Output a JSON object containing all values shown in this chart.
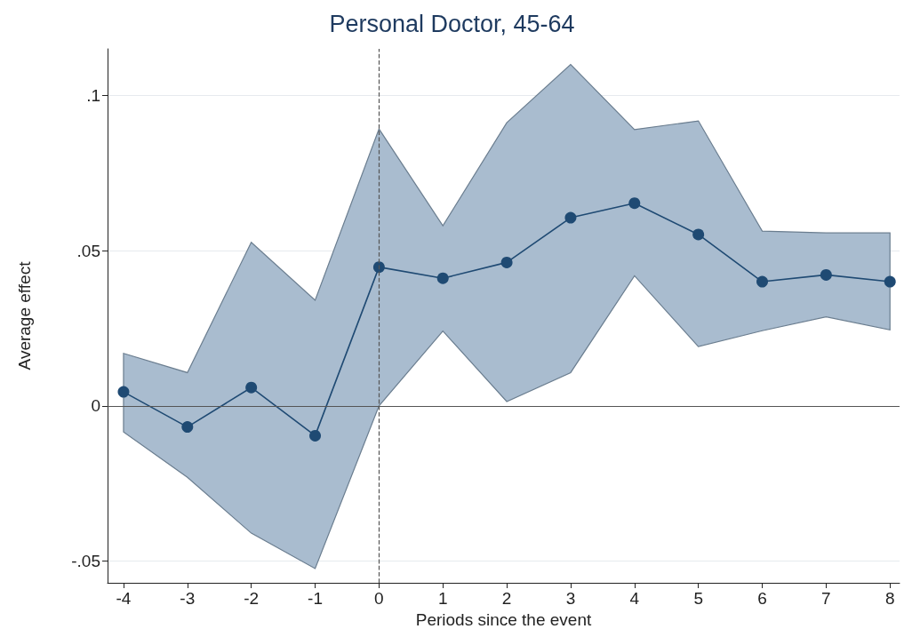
{
  "chart_data": {
    "type": "line",
    "title": "Personal Doctor, 45-64",
    "xlabel": "Periods since the event",
    "ylabel": "Average effect",
    "x": [
      -4,
      -3,
      -2,
      -1,
      0,
      1,
      2,
      3,
      4,
      5,
      6,
      7,
      8
    ],
    "series": [
      {
        "color": "#1f4a73",
        "values": [
          0.0045,
          -0.0068,
          0.0059,
          -0.0096,
          0.0447,
          0.0411,
          0.0462,
          0.0606,
          0.0653,
          0.0552,
          0.04,
          0.0422,
          0.04
        ],
        "lower": [
          -0.0084,
          -0.023,
          -0.041,
          -0.0524,
          0.0,
          0.0241,
          0.0014,
          0.0107,
          0.0419,
          0.0191,
          0.0242,
          0.0287,
          0.0245
        ],
        "upper": [
          0.0169,
          0.0107,
          0.0527,
          0.034,
          0.0892,
          0.058,
          0.0912,
          0.11,
          0.089,
          0.0918,
          0.0563,
          0.0557,
          0.0557
        ]
      }
    ],
    "xlim": [
      -4.25,
      8.15
    ],
    "xticks": [
      -4,
      -3,
      -2,
      -1,
      0,
      1,
      2,
      3,
      4,
      5,
      6,
      7,
      8
    ],
    "ylim": [
      -0.057,
      0.115
    ],
    "yticks": [
      {
        "value": -0.05,
        "label": "-.05"
      },
      {
        "value": 0,
        "label": "0"
      },
      {
        "value": 0.05,
        "label": ".05"
      },
      {
        "value": 0.1,
        "label": ".1"
      }
    ],
    "grid": "y",
    "marker": "circle",
    "line_style": "solid",
    "ref_lines": [
      {
        "axis": "x",
        "value": 0,
        "line_style": "dashed",
        "color": "#555555"
      },
      {
        "axis": "y",
        "value": 0,
        "line_style": "solid",
        "color": "#555555"
      }
    ]
  }
}
